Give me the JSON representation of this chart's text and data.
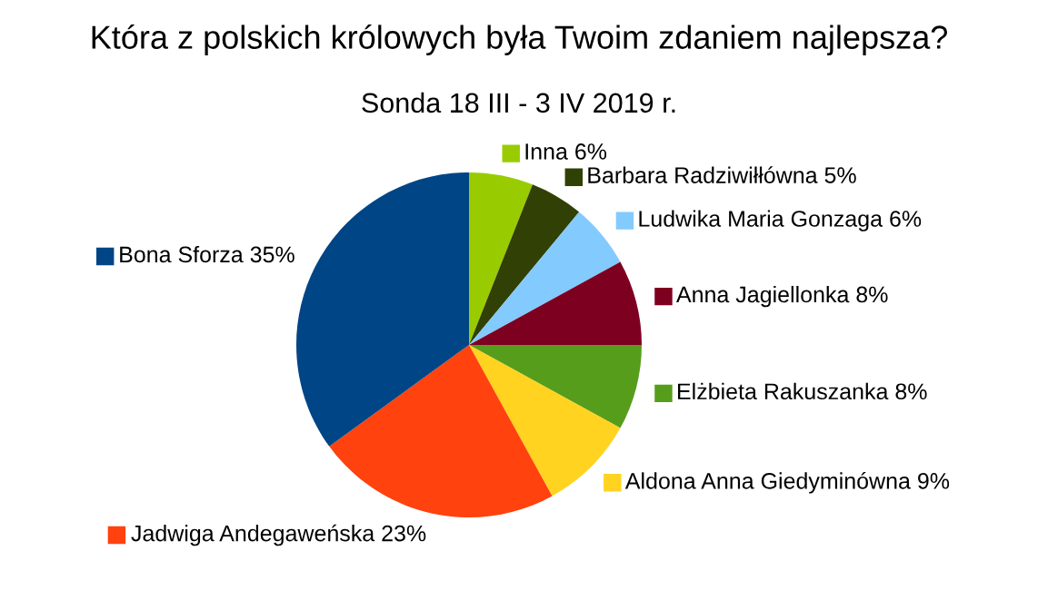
{
  "chart_data": {
    "type": "pie",
    "title": "Która z polskich królowych była Twoim zdaniem najlepsza?",
    "subtitle": "Sonda 18 III - 3 IV 2019 r.",
    "categories": [
      "Inna",
      "Barbara Radziwiłłówna",
      "Ludwika Maria Gonzaga",
      "Anna Jagiellonka",
      "Elżbieta Rakuszanka",
      "Aldona Anna Giedyminówna",
      "Jadwiga Andegaweńska",
      "Bona Sforza"
    ],
    "values": [
      6,
      5,
      6,
      8,
      8,
      9,
      23,
      35
    ],
    "legend": "right",
    "value_labels": [
      "6%",
      "5%",
      "6%",
      "8%",
      "8%",
      "9%",
      "23%",
      "35%"
    ],
    "colors": [
      "#99cc00",
      "#314004",
      "#83caff",
      "#7e0021",
      "#579d1c",
      "#ffd320",
      "#ff420e",
      "#004586"
    ]
  }
}
